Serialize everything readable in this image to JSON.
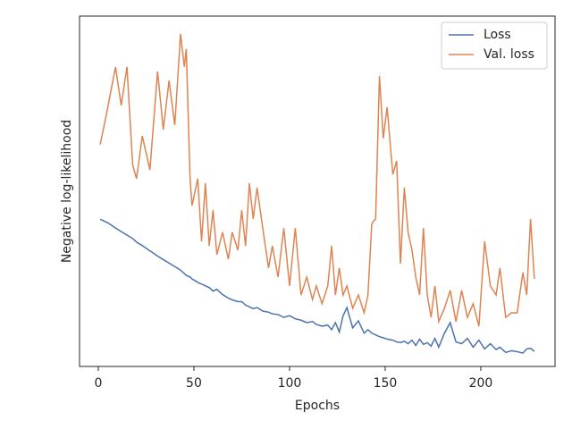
{
  "chart_data": {
    "type": "line",
    "xlabel": "Epochs",
    "ylabel": "Negative log-likelihood",
    "x": [
      1,
      5,
      9,
      12,
      15,
      18,
      20,
      23,
      27,
      31,
      34,
      37,
      40,
      43,
      45,
      46,
      48,
      49,
      52,
      54,
      56,
      58,
      60,
      62,
      65,
      68,
      70,
      73,
      75,
      77,
      79,
      81,
      83,
      86,
      89,
      91,
      94,
      97,
      100,
      103,
      106,
      109,
      112,
      114,
      117,
      120,
      122,
      124,
      126,
      128,
      130,
      133,
      136,
      139,
      141,
      143,
      145,
      147,
      149,
      151,
      154,
      156,
      158,
      160,
      162,
      164,
      166,
      168,
      170,
      172,
      174,
      176,
      178,
      181,
      184,
      187,
      190,
      193,
      196,
      199,
      202,
      205,
      208,
      210,
      213,
      216,
      219,
      222,
      224,
      226,
      228
    ],
    "series": [
      {
        "name": "Loss",
        "color": "#4c72b0",
        "values": [
          42,
          41,
          39.5,
          38.5,
          37.5,
          36.5,
          35.5,
          34.5,
          33,
          31.5,
          30.5,
          29.5,
          28.5,
          27.5,
          26.5,
          26,
          25.5,
          25,
          24,
          23.5,
          23,
          22.5,
          21.5,
          22,
          20.5,
          19.5,
          19,
          18.5,
          18.5,
          17.5,
          17,
          16.5,
          16.8,
          15.8,
          15.5,
          15,
          14.8,
          14,
          14.5,
          13.6,
          13.2,
          12.5,
          12.8,
          12,
          11.5,
          11.8,
          10.5,
          12.5,
          9.8,
          14.5,
          16.8,
          11,
          13,
          9.5,
          10.5,
          9.5,
          9,
          8.5,
          8.2,
          7.8,
          7.5,
          7,
          6.8,
          7.2,
          6.5,
          7.5,
          6,
          7.8,
          6.3,
          6.8,
          5.8,
          8,
          5.5,
          9.5,
          12.5,
          7,
          6.5,
          8,
          5.5,
          7.5,
          5,
          6.5,
          4.8,
          5.5,
          4,
          4.5,
          4.2,
          3.8,
          5,
          5.2,
          4.3
        ]
      },
      {
        "name": "Val. loss",
        "color": "#dd8452",
        "values": [
          63.3,
          74,
          85.5,
          74.5,
          85.5,
          57.4,
          53.6,
          65.8,
          56.1,
          84.2,
          67.6,
          81.6,
          68.9,
          94.9,
          85.5,
          90.6,
          53.6,
          45.9,
          53.6,
          35.7,
          52.3,
          34.4,
          44.6,
          31.9,
          38.3,
          30.6,
          38.3,
          33.2,
          44.6,
          34.4,
          52.3,
          42.1,
          51,
          39.5,
          28.1,
          34.4,
          25.5,
          39.5,
          23,
          39.5,
          20.4,
          25.5,
          19.1,
          23,
          17.9,
          23,
          34.4,
          20.4,
          28.1,
          20.4,
          23,
          16.6,
          20.4,
          15.3,
          20.4,
          40.8,
          42.1,
          82.9,
          65.1,
          74,
          54.8,
          58.7,
          29.3,
          51,
          38.3,
          33.2,
          25.5,
          20.4,
          39.5,
          20.4,
          14,
          23,
          12.8,
          16.6,
          21.7,
          12.8,
          21.7,
          14,
          17.9,
          11.5,
          35.7,
          23,
          20.4,
          28.1,
          14,
          15.3,
          15.3,
          26.8,
          20.4,
          42.1,
          25
        ]
      }
    ],
    "xlim": [
      -9.8,
      238.8
    ],
    "xticks": [
      0,
      50,
      100,
      150,
      200
    ],
    "ylim": [
      0,
      100
    ],
    "legend": "upper right"
  }
}
